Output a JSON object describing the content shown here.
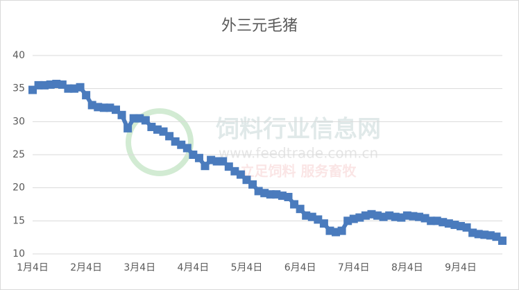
{
  "chart_data": {
    "type": "line",
    "title": "外三元毛猪",
    "categories": [
      "1月4日",
      null,
      null,
      null,
      null,
      null,
      null,
      null,
      null,
      "2月4日",
      null,
      null,
      null,
      null,
      null,
      null,
      null,
      null,
      "3月4日",
      null,
      null,
      null,
      null,
      null,
      null,
      null,
      null,
      "4月4日",
      null,
      null,
      null,
      null,
      null,
      null,
      null,
      null,
      "5月4日",
      null,
      null,
      null,
      null,
      null,
      null,
      null,
      null,
      "6月4日",
      null,
      null,
      null,
      null,
      null,
      null,
      null,
      null,
      "7月4日",
      null,
      null,
      null,
      null,
      null,
      null,
      null,
      null,
      "8月4日",
      null,
      null,
      null,
      null,
      null,
      null,
      null,
      null,
      "9月4日",
      null,
      null,
      null,
      null,
      null,
      null,
      null
    ],
    "series": [
      {
        "color": "#4a7bbd",
        "values": [
          34.8,
          35.5,
          35.5,
          35.6,
          35.7,
          35.6,
          35.0,
          35.0,
          35.2,
          34.0,
          32.5,
          32.2,
          32.1,
          32.1,
          31.8,
          31.0,
          29.0,
          30.5,
          30.5,
          30.2,
          29.2,
          28.8,
          28.5,
          27.8,
          27.0,
          26.5,
          26.0,
          25.0,
          24.5,
          23.3,
          24.2,
          24.0,
          24.0,
          23.2,
          22.5,
          22.0,
          21.2,
          20.5,
          19.5,
          19.2,
          19.0,
          19.0,
          18.8,
          18.6,
          17.5,
          16.8,
          15.8,
          15.6,
          15.2,
          14.6,
          13.5,
          13.3,
          13.5,
          15.0,
          15.3,
          15.5,
          15.8,
          16.0,
          15.8,
          15.6,
          15.8,
          15.6,
          15.5,
          15.8,
          15.7,
          15.6,
          15.4,
          15.0,
          15.0,
          14.8,
          14.6,
          14.4,
          14.2,
          14.0,
          13.2,
          13.0,
          12.9,
          12.8,
          12.6,
          12.0
        ]
      }
    ],
    "ylim": [
      10,
      40
    ],
    "yticks": [
      10,
      15,
      20,
      25,
      30,
      35,
      40
    ],
    "grid": true
  },
  "watermark": {
    "title": "饲料行业信息网",
    "url": "www.feedtrade.com.cn",
    "slogan": "立足饲料   服务畜牧"
  }
}
